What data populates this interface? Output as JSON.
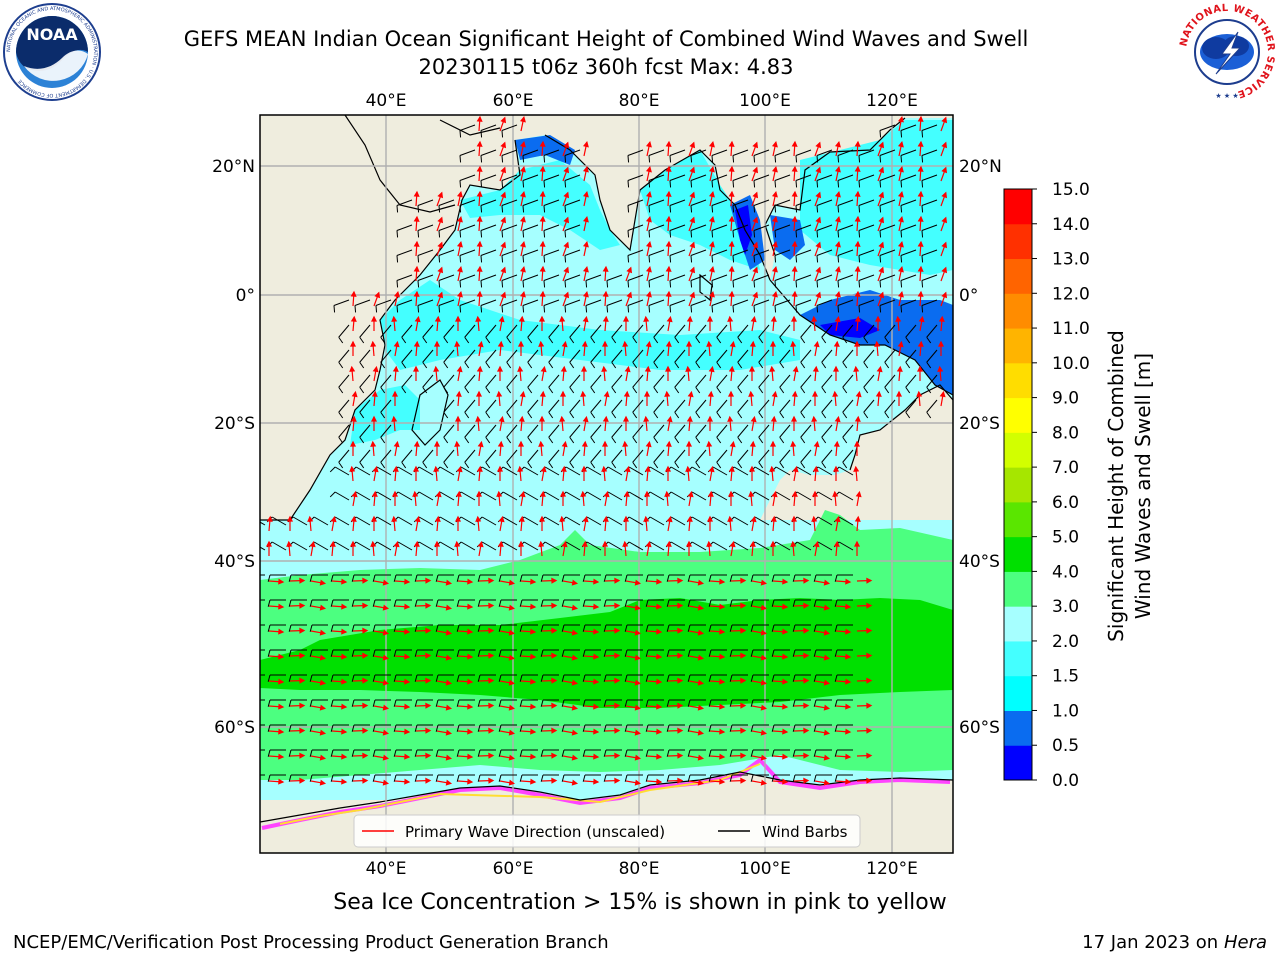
{
  "header": {
    "title_line1": "GEFS MEAN Indian Ocean Significant Height of Combined Wind Waves and Swell",
    "title_line2": "20230115 t06z 360h fcst   Max: 4.83"
  },
  "logos": {
    "noaa_text": "NOAA",
    "noaa_ring_text": "NATIONAL OCEANIC AND ATMOSPHERIC ADMINISTRATION · U.S. DEPARTMENT OF COMMERCE",
    "nws_ring_text": "NATIONAL WEATHER SERVICE"
  },
  "map": {
    "lon_ticks": [
      "40°E",
      "60°E",
      "80°E",
      "100°E",
      "120°E"
    ],
    "lat_ticks": [
      "20°N",
      "0°",
      "20°S",
      "40°S",
      "60°S"
    ],
    "legend": {
      "wave_direction": "Primary Wave Direction (unscaled)",
      "wind_barbs": "Wind Barbs",
      "wave_color": "#ff0000",
      "barb_color": "#000000"
    },
    "land_color": "#efedde",
    "sea_ice_note": "Sea Ice Concentration > 15% is shown in pink to yellow"
  },
  "colorbar": {
    "label_line1": "Significant Height of Combined",
    "label_line2": "Wind Waves and Swell [m]",
    "ticks": [
      "0.0",
      "0.5",
      "1.0",
      "1.5",
      "2.0",
      "3.0",
      "4.0",
      "5.0",
      "6.0",
      "7.0",
      "8.0",
      "9.0",
      "10.0",
      "11.0",
      "12.0",
      "13.0",
      "14.0",
      "15.0"
    ],
    "colors": [
      "#0000ff",
      "#0a6cf0",
      "#00ffff",
      "#44ffff",
      "#a6ffff",
      "#4cff80",
      "#00e000",
      "#5ae600",
      "#a6e600",
      "#d2ff00",
      "#ffff00",
      "#ffdd00",
      "#ffb400",
      "#ff8c00",
      "#ff6400",
      "#ff3000",
      "#ff0000"
    ]
  },
  "footer": {
    "left": "NCEP/EMC/Verification Post Processing Product Generation Branch",
    "right_prefix": "17 Jan 2023 on ",
    "right_host": "Hera"
  }
}
